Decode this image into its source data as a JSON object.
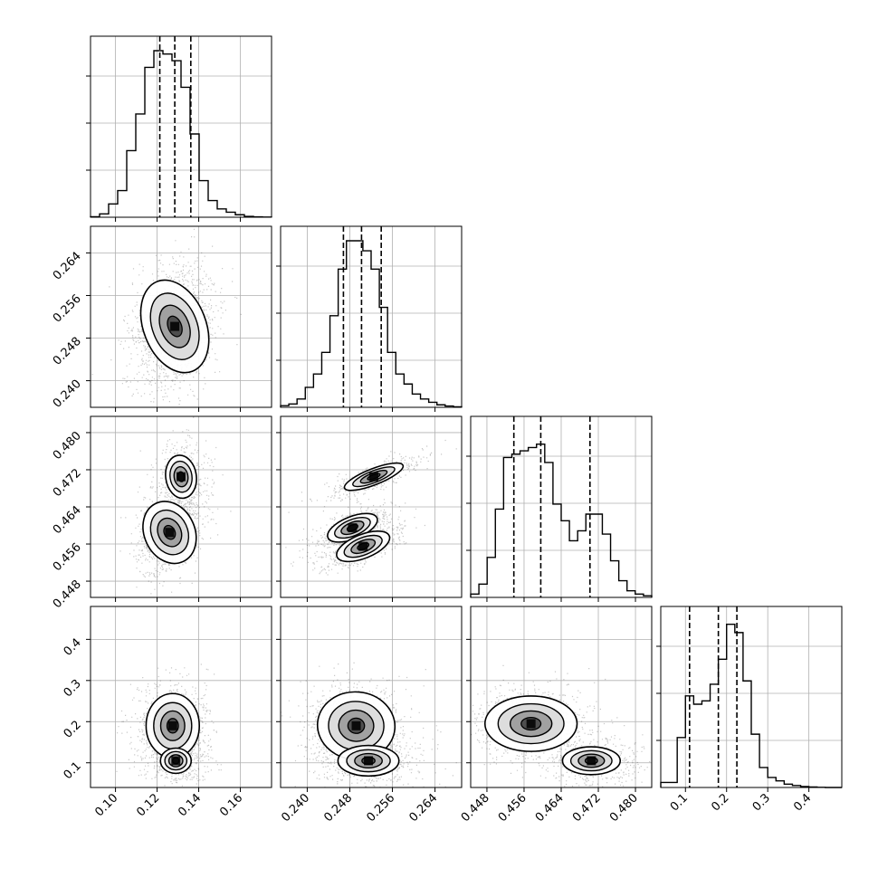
{
  "chart_data": {
    "type": "corner",
    "n_params": 4,
    "grid": true,
    "params": [
      {
        "range": [
          0.088,
          0.175
        ],
        "ticks": [
          "0.10",
          "0.12",
          "0.14",
          "0.16"
        ],
        "tick_values": [
          0.1,
          0.12,
          0.14,
          0.16
        ],
        "quantiles": [
          0.1213,
          0.1285,
          0.1362
        ],
        "hist": [
          0.003,
          0.02,
          0.08,
          0.16,
          0.4,
          0.62,
          0.9,
          1.0,
          0.98,
          0.94,
          0.78,
          0.5,
          0.22,
          0.1,
          0.05,
          0.03,
          0.015,
          0.005,
          0.002,
          0.001
        ]
      },
      {
        "range": [
          0.235,
          0.269
        ],
        "ticks": [
          "0.240",
          "0.248",
          "0.256",
          "0.264"
        ],
        "tick_values": [
          0.24,
          0.248,
          0.256,
          0.264
        ],
        "quantiles": [
          0.2468,
          0.2502,
          0.2539
        ],
        "hist": [
          0.01,
          0.02,
          0.05,
          0.12,
          0.2,
          0.33,
          0.55,
          0.83,
          1.0,
          1.0,
          0.94,
          0.83,
          0.6,
          0.33,
          0.2,
          0.14,
          0.08,
          0.05,
          0.03,
          0.015,
          0.008,
          0.003
        ]
      },
      {
        "range": [
          0.4445,
          0.4835
        ],
        "ticks": [
          "0.448",
          "0.456",
          "0.464",
          "0.472",
          "0.480"
        ],
        "tick_values": [
          0.448,
          0.456,
          0.464,
          0.472,
          0.48
        ],
        "quantiles": [
          0.4538,
          0.4596,
          0.4702
        ],
        "hist": [
          0.02,
          0.08,
          0.24,
          0.53,
          0.84,
          0.86,
          0.88,
          0.9,
          0.92,
          0.81,
          0.56,
          0.46,
          0.34,
          0.4,
          0.5,
          0.5,
          0.38,
          0.22,
          0.1,
          0.04,
          0.02,
          0.01
        ]
      },
      {
        "range": [
          0.04,
          0.48
        ],
        "ticks": [
          "0.1",
          "0.2",
          "0.3",
          "0.4"
        ],
        "tick_values": [
          0.1,
          0.2,
          0.3,
          0.4
        ],
        "quantiles": [
          0.11,
          0.18,
          0.225
        ],
        "hist": [
          0.03,
          0.03,
          0.3,
          0.55,
          0.5,
          0.52,
          0.62,
          0.77,
          0.98,
          0.93,
          0.64,
          0.32,
          0.12,
          0.06,
          0.04,
          0.02,
          0.012,
          0.006,
          0.003,
          0.001,
          0.0,
          0.0
        ]
      }
    ],
    "pairs": [
      {
        "x": 0,
        "y": 1,
        "blobs": [
          {
            "cx": 0.1285,
            "cy": 0.2502,
            "sx": 0.0068,
            "sy": 0.0042,
            "rho": 0.25,
            "weight": 1.0
          }
        ]
      },
      {
        "x": 0,
        "y": 2,
        "blobs": [
          {
            "cx": 0.126,
            "cy": 0.4585,
            "sx": 0.0055,
            "sy": 0.0033,
            "rho": 0.35,
            "weight": 1.0
          },
          {
            "cx": 0.1315,
            "cy": 0.4705,
            "sx": 0.0045,
            "sy": 0.0028,
            "rho": 0.1,
            "weight": 0.55
          }
        ]
      },
      {
        "x": 1,
        "y": 2,
        "blobs": [
          {
            "cx": 0.2485,
            "cy": 0.4595,
            "sx": 0.0026,
            "sy": 0.0017,
            "rho": 0.7,
            "weight": 0.75
          },
          {
            "cx": 0.2505,
            "cy": 0.4555,
            "sx": 0.0026,
            "sy": 0.0017,
            "rho": 0.7,
            "weight": 0.85
          },
          {
            "cx": 0.2525,
            "cy": 0.4705,
            "sx": 0.0036,
            "sy": 0.0019,
            "rho": 0.85,
            "weight": 0.55
          }
        ]
      },
      {
        "x": 0,
        "y": 3,
        "blobs": [
          {
            "cx": 0.1275,
            "cy": 0.19,
            "sx": 0.0058,
            "sy": 0.035,
            "rho": 0.0,
            "weight": 1.0
          },
          {
            "cx": 0.129,
            "cy": 0.105,
            "sx": 0.005,
            "sy": 0.02,
            "rho": 0.0,
            "weight": 0.45
          }
        ]
      },
      {
        "x": 1,
        "y": 3,
        "blobs": [
          {
            "cx": 0.2492,
            "cy": 0.19,
            "sx": 0.0033,
            "sy": 0.037,
            "rho": -0.1,
            "weight": 1.0
          },
          {
            "cx": 0.2515,
            "cy": 0.105,
            "sx": 0.0035,
            "sy": 0.022,
            "rho": 0.0,
            "weight": 0.55
          }
        ]
      },
      {
        "x": 2,
        "y": 3,
        "blobs": [
          {
            "cx": 0.4575,
            "cy": 0.195,
            "sx": 0.0045,
            "sy": 0.03,
            "rho": 0.0,
            "weight": 1.0
          },
          {
            "cx": 0.4705,
            "cy": 0.105,
            "sx": 0.0038,
            "sy": 0.02,
            "rho": 0.0,
            "weight": 0.55
          }
        ]
      }
    ]
  }
}
